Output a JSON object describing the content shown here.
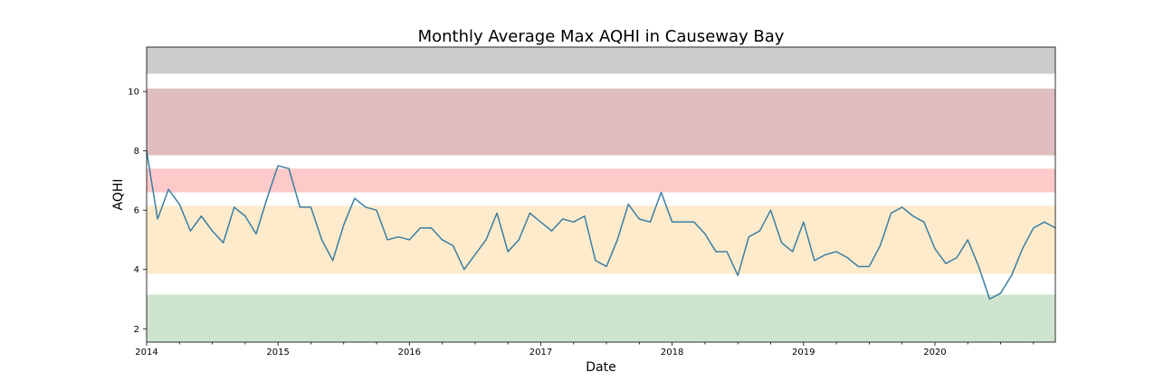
{
  "chart_data": {
    "type": "line",
    "title": "Monthly Average Max AQHI in Causeway Bay",
    "xlabel": "Date",
    "ylabel": "AQHI",
    "xlim": [
      "2014-01",
      "2020-12"
    ],
    "ylim": [
      1.55,
      11.5
    ],
    "y_ticks": [
      2,
      4,
      6,
      8,
      10
    ],
    "x_ticks": [
      "2014",
      "2015",
      "2016",
      "2017",
      "2018",
      "2019",
      "2020"
    ],
    "grid": false,
    "line_color": "#3b7ea1",
    "bands": [
      {
        "from": 10.6,
        "to": 11.5,
        "color": "#cccccc"
      },
      {
        "from": 7.85,
        "to": 10.1,
        "color": "#dfbdc0"
      },
      {
        "from": 6.6,
        "to": 7.4,
        "color": "#fdc9c9"
      },
      {
        "from": 3.85,
        "to": 6.15,
        "color": "#fdebcc"
      },
      {
        "from": 1.55,
        "to": 3.15,
        "color": "#cfe4cf"
      }
    ],
    "series": [
      {
        "x": [
          "2014-01",
          "2014-02",
          "2014-03",
          "2014-04",
          "2014-05",
          "2014-06",
          "2014-07",
          "2014-08",
          "2014-09",
          "2014-10",
          "2014-11",
          "2014-12",
          "2015-01",
          "2015-02",
          "2015-03",
          "2015-04",
          "2015-05",
          "2015-06",
          "2015-07",
          "2015-08",
          "2015-09",
          "2015-10",
          "2015-11",
          "2015-12",
          "2016-01",
          "2016-02",
          "2016-03",
          "2016-04",
          "2016-05",
          "2016-06",
          "2016-07",
          "2016-08",
          "2016-09",
          "2016-10",
          "2016-11",
          "2016-12",
          "2017-01",
          "2017-02",
          "2017-03",
          "2017-04",
          "2017-05",
          "2017-06",
          "2017-07",
          "2017-08",
          "2017-09",
          "2017-10",
          "2017-11",
          "2017-12",
          "2018-01",
          "2018-02",
          "2018-03",
          "2018-04",
          "2018-05",
          "2018-06",
          "2018-07",
          "2018-08",
          "2018-09",
          "2018-10",
          "2018-11",
          "2018-12",
          "2019-01",
          "2019-02",
          "2019-03",
          "2019-04",
          "2019-05",
          "2019-06",
          "2019-07",
          "2019-08",
          "2019-09",
          "2019-10",
          "2019-11",
          "2019-12",
          "2020-01",
          "2020-02",
          "2020-03",
          "2020-04",
          "2020-05",
          "2020-06",
          "2020-07",
          "2020-08",
          "2020-09",
          "2020-10",
          "2020-11",
          "2020-12"
        ],
        "values": [
          8.0,
          5.7,
          6.7,
          6.2,
          5.3,
          5.8,
          5.3,
          4.9,
          6.1,
          5.8,
          5.2,
          6.4,
          7.5,
          7.4,
          6.1,
          6.1,
          5.0,
          4.3,
          5.5,
          6.4,
          6.1,
          6.0,
          5.0,
          5.1,
          5.0,
          5.4,
          5.4,
          5.0,
          4.8,
          4.0,
          4.5,
          5.0,
          5.9,
          4.6,
          5.0,
          5.9,
          5.6,
          5.3,
          5.7,
          5.6,
          5.8,
          4.3,
          4.1,
          5.0,
          6.2,
          5.7,
          5.6,
          6.6,
          5.6,
          5.6,
          5.6,
          5.2,
          4.6,
          4.6,
          3.8,
          5.1,
          5.3,
          6.0,
          4.9,
          4.6,
          5.6,
          4.3,
          4.5,
          4.6,
          4.4,
          4.1,
          4.1,
          4.8,
          5.9,
          6.1,
          5.8,
          5.6,
          4.7,
          4.2,
          4.4,
          5.0,
          4.1,
          3.0,
          3.2,
          3.8,
          4.7,
          5.4,
          5.6,
          5.4
        ]
      }
    ]
  }
}
